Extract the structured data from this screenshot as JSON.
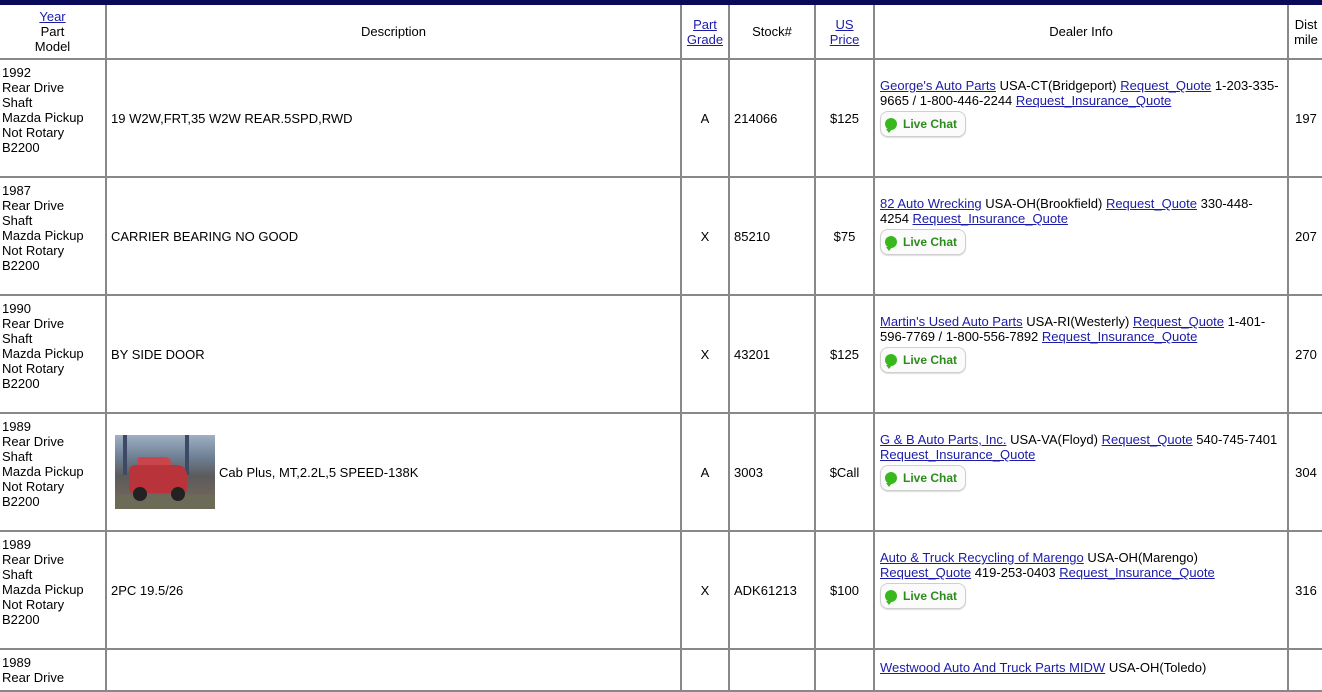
{
  "headers": {
    "year": "Year",
    "part": "Part",
    "model": "Model",
    "description": "Description",
    "grade_line1": "Part",
    "grade_line2": "Grade",
    "stock": "Stock#",
    "price_line1": "US",
    "price_line2": "Price",
    "dealer": "Dealer Info",
    "dist_line1": "Dist",
    "dist_line2": "mile"
  },
  "live_chat_label": "Live Chat",
  "rows": [
    {
      "year": "1992",
      "part_l1": "Rear Drive",
      "part_l2": "Shaft",
      "model_l1": "Mazda Pickup",
      "model_l2": "Not Rotary",
      "model_l3": "B2200",
      "description": "19 W2W,FRT,35 W2W REAR.5SPD,RWD",
      "grade": "A",
      "stock": "214066",
      "price": "$125",
      "dealer_name": "George's Auto Parts",
      "location": "USA-CT(Bridgeport)",
      "quote": "Request_Quote",
      "phone": "1-203-335-9665 / 1-800-446-2244",
      "insurance": "Request_Insurance_Quote",
      "dist": "197"
    },
    {
      "year": "1987",
      "part_l1": "Rear Drive",
      "part_l2": "Shaft",
      "model_l1": "Mazda Pickup",
      "model_l2": "Not Rotary",
      "model_l3": "B2200",
      "description": "CARRIER BEARING NO GOOD",
      "grade": "X",
      "stock": "85210",
      "price": "$75",
      "dealer_name": "82 Auto Wrecking",
      "location": "USA-OH(Brookfield)",
      "quote": "Request_Quote",
      "phone": "330-448-4254",
      "insurance": "Request_Insurance_Quote",
      "dist": "207"
    },
    {
      "year": "1990",
      "part_l1": "Rear Drive",
      "part_l2": "Shaft",
      "model_l1": "Mazda Pickup",
      "model_l2": "Not Rotary",
      "model_l3": "B2200",
      "description": "BY SIDE DOOR",
      "grade": "X",
      "stock": "43201",
      "price": "$125",
      "dealer_name": "Martin's Used Auto Parts",
      "location": "USA-RI(Westerly)",
      "quote": "Request_Quote",
      "phone": "1-401-596-7769 / 1-800-556-7892",
      "insurance": "Request_Insurance_Quote",
      "dist": "270"
    },
    {
      "year": "1989",
      "part_l1": "Rear Drive",
      "part_l2": "Shaft",
      "model_l1": "Mazda Pickup",
      "model_l2": "Not Rotary",
      "model_l3": "B2200",
      "description": "Cab Plus, MT,2.2L,5 SPEED-138K",
      "grade": "A",
      "stock": "3003",
      "price": "$Call",
      "dealer_name": "G & B Auto Parts, Inc.",
      "location": "USA-VA(Floyd)",
      "quote": "Request_Quote",
      "phone": "540-745-7401",
      "insurance": "Request_Insurance_Quote",
      "dist": "304"
    },
    {
      "year": "1989",
      "part_l1": "Rear Drive",
      "part_l2": "Shaft",
      "model_l1": "Mazda Pickup",
      "model_l2": "Not Rotary",
      "model_l3": "B2200",
      "description": "2PC 19.5/26",
      "grade": "X",
      "stock": "ADK61213",
      "price": "$100",
      "dealer_name": "Auto & Truck Recycling of Marengo",
      "location": "USA-OH(Marengo)",
      "quote": "Request_Quote",
      "phone": "419-253-0403",
      "insurance": "Request_Insurance_Quote",
      "dist": "316"
    },
    {
      "year": "1989",
      "part_l1": "Rear Drive",
      "dealer_name": "Westwood Auto And Truck Parts MIDW",
      "location": "USA-OH(Toledo)"
    }
  ],
  "colors": {
    "top_bar": "#0a0a5a",
    "link": "#1b1ba8",
    "live_chat_text": "#2e8b1e",
    "live_chat_icon": "#39b81e",
    "grid_border": "#888888"
  },
  "icons": {
    "live_chat": "chat-bubble-icon",
    "part_photo": "truck-photo"
  }
}
